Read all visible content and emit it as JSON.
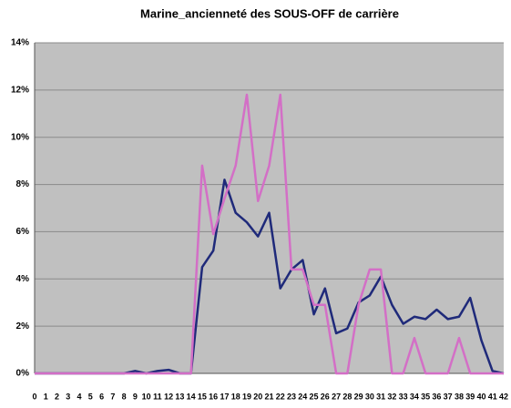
{
  "chart_data": {
    "type": "line",
    "title": "Marine_ancienneté des SOUS-OFF de carrière",
    "categories": [
      "0",
      "1",
      "2",
      "3",
      "4",
      "5",
      "6",
      "7",
      "8",
      "9",
      "10",
      "11",
      "12",
      "13",
      "14",
      "15",
      "16",
      "17",
      "18",
      "19",
      "20",
      "21",
      "22",
      "23",
      "24",
      "25",
      "26",
      "27",
      "28",
      "29",
      "30",
      "31",
      "32",
      "33",
      "34",
      "35",
      "36",
      "37",
      "38",
      "39",
      "40",
      "41",
      "42"
    ],
    "series": [
      {
        "color": "#1f2a7a",
        "values": [
          0,
          0,
          0,
          0,
          0,
          0,
          0,
          0,
          0,
          0.1,
          0,
          0.1,
          0.15,
          0,
          0,
          4.5,
          5.2,
          8.2,
          6.8,
          6.4,
          5.8,
          6.8,
          3.6,
          4.4,
          4.8,
          2.5,
          3.6,
          1.7,
          1.9,
          3.0,
          3.3,
          4.1,
          2.9,
          2.1,
          2.4,
          2.3,
          2.7,
          2.3,
          2.4,
          3.2,
          1.4,
          0.1,
          0
        ]
      },
      {
        "color": "#d36fc6",
        "values": [
          0,
          0,
          0,
          0,
          0,
          0,
          0,
          0,
          0,
          0,
          0,
          0,
          0,
          0,
          0,
          8.8,
          5.9,
          7.4,
          8.8,
          11.8,
          7.3,
          8.8,
          11.8,
          4.4,
          4.4,
          2.9,
          2.9,
          0,
          0,
          2.9,
          4.4,
          4.4,
          0,
          0,
          1.5,
          0,
          0,
          0,
          1.5,
          0,
          0,
          0,
          0
        ]
      }
    ],
    "ylim": [
      0,
      14
    ],
    "yticks": [
      {
        "value": 0,
        "label": "0%"
      },
      {
        "value": 2,
        "label": "2%"
      },
      {
        "value": 4,
        "label": "4%"
      },
      {
        "value": 6,
        "label": "6%"
      },
      {
        "value": 8,
        "label": "8%"
      },
      {
        "value": 10,
        "label": "10%"
      },
      {
        "value": 12,
        "label": "12%"
      },
      {
        "value": 14,
        "label": "14%"
      }
    ],
    "grid": true,
    "plot_background": "#c0c0c0"
  }
}
